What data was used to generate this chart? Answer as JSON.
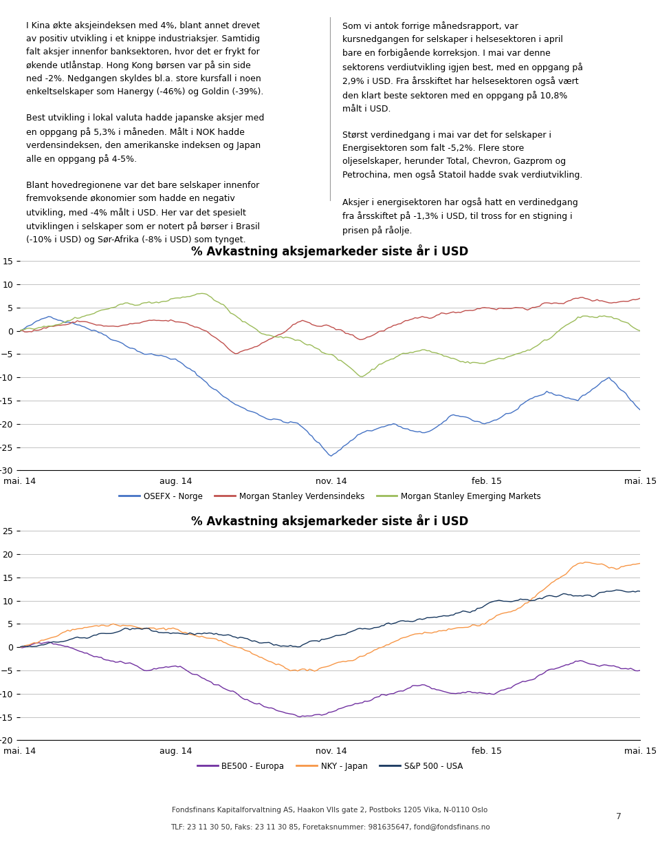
{
  "chart1_title": "% Avkastning aksjemarkeder siste år i USD",
  "chart2_title": "% Avkastning aksjemarkeder siste år i USD",
  "chart1_ylim": [
    -30,
    15
  ],
  "chart2_ylim": [
    -20,
    25
  ],
  "chart1_yticks": [
    15,
    10,
    5,
    0,
    -5,
    -10,
    -15,
    -20,
    -25,
    -30
  ],
  "chart2_yticks": [
    25,
    20,
    15,
    10,
    5,
    0,
    -5,
    -10,
    -15,
    -20
  ],
  "x_labels": [
    "mai. 14",
    "aug. 14",
    "nov. 14",
    "feb. 15",
    "mai. 15"
  ],
  "chart1_legend": [
    "OSEFX - Norge",
    "Morgan Stanley Verdensindeks",
    "Morgan Stanley Emerging Markets"
  ],
  "chart2_legend": [
    "BE500 - Europa",
    "NKY - Japan",
    "S&P 500 - USA"
  ],
  "chart1_colors": [
    "#4472C4",
    "#C0504D",
    "#9BBB59"
  ],
  "chart2_colors": [
    "#7030A0",
    "#F79646",
    "#17375E"
  ],
  "footer": "Fondsfinans Kapitalforvaltning AS, Haakon VIIs gate 2, Postboks 1205 Vika, N-0110 Oslo",
  "footer2": "TLF: 23 11 30 50, Faks: 23 11 30 85, Foretaksnummer: 981635647, fond@fondsfinans.no",
  "page_number": "7",
  "text_left": "I Kina økte aksjeindeksen med 4%, blant annet drevet\nav positiv utvikling i et knippe industriaksjer. Samtidig\nfalt aksjer innenfor banksektoren, hvor det er frykt for\nøkende utlånstap. Hong Kong børsen var på sin side\nned -2%. Nedgangen skyldes bl.a. store kursfall i noen\nenkeltselskaper som Hanergy (-46%) og Goldin (-39%).\n\nBest utvikling i lokal valuta hadde japanske aksjer med\nen oppgang på 5,3% i måneden. Målt i NOK hadde\nverdensindeksen, den amerikanske indeksen og Japan\nalle en oppgang på 4-5%.\n\nBlant hovedregionene var det bare selskaper innenfor\nfremvoksende økonomier som hadde en negativ\nutvikling, med -4% målt i USD. Her var det spesielt\nutviklingen i selskaper som er notert på børser i Brasil\n(-10% i USD) og Sør-Afrika (-8% i USD) som tynget.",
  "text_right": "Som vi antok forrige månedsrapport, var\nkursnedgangen for selskaper i helsesektoren i april\nbare en forbigående korreksjon. I mai var denne\nsektorens verdiutvikling igjen best, med en oppgang på\n2,9% i USD. Fra årsskiftet har helsesektoren også vært\nden klart beste sektoren med en oppgang på 10,8%\nmålt i USD.\n\nStørst verdinedgang i mai var det for selskaper i\nEnergisektoren som falt -5,2%. Flere store\noljeselskaper, herunder Total, Chevron, Gazprom og\nPetrochina, men også Statoil hadde svak verdiutvikling.\n\nAksjer i energisektoren har også hatt en verdinedgang\nfra årsskiftet på -1,3% i USD, til tross for en stigning i\nprisen på råolje."
}
